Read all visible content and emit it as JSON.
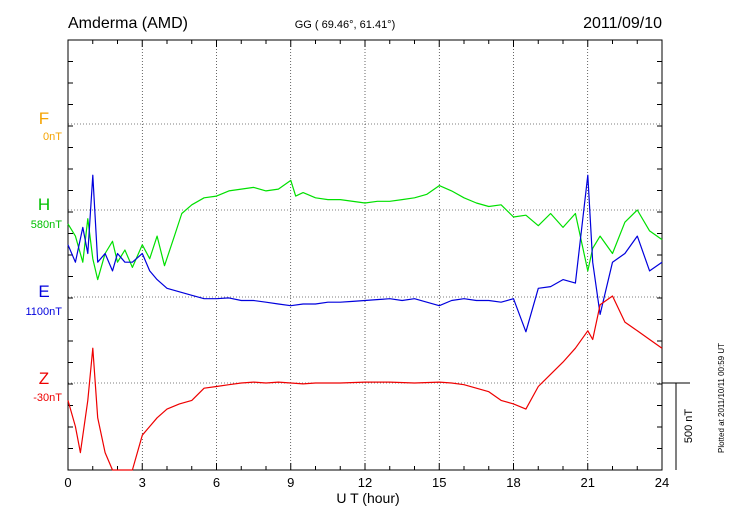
{
  "header": {
    "station": "Amderma (AMD)",
    "coords": "GG ( 69.46°,  61.41°)",
    "date": "2011/09/10"
  },
  "plotted_note": "Plotted at 2011/10/11 00:59 UT",
  "scale_bar_label": "500 nT",
  "colors": {
    "F": "#f5a300",
    "H": "#00e000",
    "E": "#0000dd",
    "Z": "#ee0000",
    "axis": "#000000"
  },
  "chart_data": {
    "type": "line",
    "xlabel": "U T (hour)",
    "ylabel": "",
    "xlim": [
      0,
      24
    ],
    "x_ticks": [
      "0",
      "3",
      "6",
      "9",
      "12",
      "15",
      "18",
      "21",
      "24"
    ],
    "grid": true,
    "scale_bar_nT": 500,
    "channels": [
      {
        "name": "F",
        "baseline": "0nT",
        "points": []
      },
      {
        "name": "H",
        "baseline": "580nT",
        "points": [
          [
            0,
            -80
          ],
          [
            0.3,
            -150
          ],
          [
            0.6,
            -300
          ],
          [
            0.8,
            -50
          ],
          [
            1,
            -280
          ],
          [
            1.2,
            -400
          ],
          [
            1.5,
            -250
          ],
          [
            1.8,
            -180
          ],
          [
            2,
            -300
          ],
          [
            2.3,
            -230
          ],
          [
            2.6,
            -330
          ],
          [
            3,
            -200
          ],
          [
            3.3,
            -280
          ],
          [
            3.6,
            -150
          ],
          [
            3.9,
            -320
          ],
          [
            4.3,
            -150
          ],
          [
            4.6,
            -20
          ],
          [
            5,
            30
          ],
          [
            5.5,
            70
          ],
          [
            6,
            80
          ],
          [
            6.5,
            110
          ],
          [
            7,
            120
          ],
          [
            7.5,
            130
          ],
          [
            8,
            110
          ],
          [
            8.5,
            120
          ],
          [
            9,
            170
          ],
          [
            9.2,
            80
          ],
          [
            9.5,
            100
          ],
          [
            10,
            70
          ],
          [
            10.5,
            60
          ],
          [
            11,
            60
          ],
          [
            12,
            40
          ],
          [
            12.5,
            50
          ],
          [
            13,
            50
          ],
          [
            13.5,
            60
          ],
          [
            14,
            70
          ],
          [
            14.5,
            90
          ],
          [
            15,
            140
          ],
          [
            15.5,
            110
          ],
          [
            16,
            70
          ],
          [
            16.5,
            40
          ],
          [
            17,
            20
          ],
          [
            17.5,
            30
          ],
          [
            18,
            -40
          ],
          [
            18.5,
            -30
          ],
          [
            19,
            -90
          ],
          [
            19.5,
            -20
          ],
          [
            20,
            -100
          ],
          [
            20.5,
            -20
          ],
          [
            21,
            -350
          ],
          [
            21.2,
            -220
          ],
          [
            21.5,
            -150
          ],
          [
            22,
            -250
          ],
          [
            22.5,
            -70
          ],
          [
            23,
            0
          ],
          [
            23.5,
            -120
          ],
          [
            24,
            -170
          ]
        ]
      },
      {
        "name": "E",
        "baseline": "1100nT",
        "points": [
          [
            0,
            300
          ],
          [
            0.3,
            200
          ],
          [
            0.6,
            400
          ],
          [
            0.8,
            250
          ],
          [
            1,
            700
          ],
          [
            1.2,
            200
          ],
          [
            1.5,
            250
          ],
          [
            1.8,
            150
          ],
          [
            2,
            250
          ],
          [
            2.3,
            200
          ],
          [
            2.6,
            200
          ],
          [
            3,
            250
          ],
          [
            3.3,
            150
          ],
          [
            3.6,
            100
          ],
          [
            4,
            50
          ],
          [
            4.5,
            30
          ],
          [
            5,
            10
          ],
          [
            5.5,
            -10
          ],
          [
            6,
            -10
          ],
          [
            6.5,
            -5
          ],
          [
            7,
            -20
          ],
          [
            7.5,
            -20
          ],
          [
            8,
            -30
          ],
          [
            8.5,
            -40
          ],
          [
            9,
            -50
          ],
          [
            9.5,
            -40
          ],
          [
            10,
            -40
          ],
          [
            10.5,
            -30
          ],
          [
            11,
            -30
          ],
          [
            11.5,
            -25
          ],
          [
            12,
            -20
          ],
          [
            13,
            -10
          ],
          [
            13.5,
            -20
          ],
          [
            14,
            -10
          ],
          [
            14.5,
            -30
          ],
          [
            15,
            -50
          ],
          [
            15.5,
            -20
          ],
          [
            16,
            -10
          ],
          [
            16.5,
            -20
          ],
          [
            17,
            -20
          ],
          [
            17.5,
            -30
          ],
          [
            18,
            -10
          ],
          [
            18.5,
            -200
          ],
          [
            19,
            50
          ],
          [
            19.5,
            60
          ],
          [
            20,
            100
          ],
          [
            20.5,
            80
          ],
          [
            21,
            700
          ],
          [
            21.2,
            200
          ],
          [
            21.5,
            -100
          ],
          [
            22,
            200
          ],
          [
            22.5,
            250
          ],
          [
            23,
            350
          ],
          [
            23.5,
            150
          ],
          [
            24,
            200
          ]
        ]
      },
      {
        "name": "Z",
        "baseline": "-30nT",
        "points": [
          [
            0,
            -100
          ],
          [
            0.3,
            -250
          ],
          [
            0.5,
            -400
          ],
          [
            0.8,
            -100
          ],
          [
            1,
            200
          ],
          [
            1.2,
            -200
          ],
          [
            1.5,
            -400
          ],
          [
            1.8,
            -500
          ],
          [
            2,
            -600
          ],
          [
            2.3,
            -650
          ],
          [
            2.6,
            -550
          ],
          [
            3,
            -300
          ],
          [
            3.3,
            -250
          ],
          [
            3.6,
            -200
          ],
          [
            4,
            -150
          ],
          [
            4.5,
            -120
          ],
          [
            5,
            -100
          ],
          [
            5.5,
            -30
          ],
          [
            6,
            -20
          ],
          [
            6.5,
            -10
          ],
          [
            7,
            0
          ],
          [
            7.5,
            5
          ],
          [
            8,
            0
          ],
          [
            8.5,
            5
          ],
          [
            9,
            0
          ],
          [
            9.5,
            -5
          ],
          [
            10,
            0
          ],
          [
            11,
            0
          ],
          [
            12,
            5
          ],
          [
            13,
            5
          ],
          [
            14,
            0
          ],
          [
            15,
            5
          ],
          [
            15.5,
            0
          ],
          [
            16,
            -10
          ],
          [
            16.5,
            -30
          ],
          [
            17,
            -50
          ],
          [
            17.5,
            -100
          ],
          [
            18,
            -120
          ],
          [
            18.5,
            -150
          ],
          [
            19,
            -20
          ],
          [
            19.5,
            50
          ],
          [
            20,
            120
          ],
          [
            20.5,
            200
          ],
          [
            21,
            300
          ],
          [
            21.2,
            250
          ],
          [
            21.5,
            450
          ],
          [
            22,
            500
          ],
          [
            22.5,
            350
          ],
          [
            23,
            300
          ],
          [
            23.5,
            250
          ],
          [
            24,
            200
          ]
        ]
      }
    ]
  }
}
